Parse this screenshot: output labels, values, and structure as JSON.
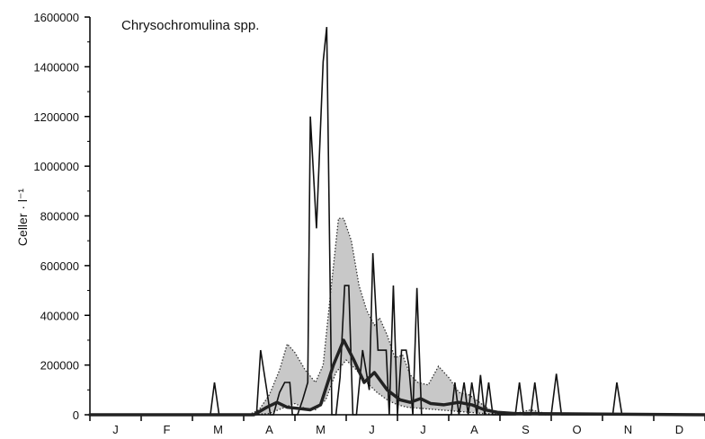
{
  "chart_data": {
    "type": "line",
    "title": "Chrysochromulina spp.",
    "ylabel": "Celler · l⁻¹",
    "xlabel": "",
    "ylim": [
      0,
      1600000
    ],
    "xlim": [
      0,
      12
    ],
    "yticks": [
      {
        "value": 0,
        "label": "0"
      },
      {
        "value": 200000,
        "label": "200000"
      },
      {
        "value": 400000,
        "label": "400000"
      },
      {
        "value": 600000,
        "label": "600000"
      },
      {
        "value": 800000,
        "label": "800000"
      },
      {
        "value": 1000000,
        "label": "1000000"
      },
      {
        "value": 1200000,
        "label": "1200000"
      },
      {
        "value": 1400000,
        "label": "1400000"
      },
      {
        "value": 1600000,
        "label": "1600000"
      }
    ],
    "months": [
      "J",
      "F",
      "M",
      "A",
      "M",
      "J",
      "J",
      "A",
      "S",
      "O",
      "N",
      "D"
    ],
    "grid": false,
    "series": [
      {
        "role": "range-band",
        "fill": "#c8c8c8",
        "upper": [
          [
            3.1,
            0
          ],
          [
            3.3,
            20000
          ],
          [
            3.5,
            80000
          ],
          [
            3.7,
            180000
          ],
          [
            3.85,
            285000
          ],
          [
            4.0,
            250000
          ],
          [
            4.2,
            180000
          ],
          [
            4.4,
            130000
          ],
          [
            4.55,
            200000
          ],
          [
            4.7,
            500000
          ],
          [
            4.85,
            790000
          ],
          [
            4.95,
            790000
          ],
          [
            5.1,
            700000
          ],
          [
            5.25,
            520000
          ],
          [
            5.4,
            420000
          ],
          [
            5.55,
            360000
          ],
          [
            5.65,
            390000
          ],
          [
            5.8,
            320000
          ],
          [
            5.95,
            230000
          ],
          [
            6.1,
            240000
          ],
          [
            6.25,
            160000
          ],
          [
            6.4,
            130000
          ],
          [
            6.6,
            120000
          ],
          [
            6.8,
            195000
          ],
          [
            7.0,
            150000
          ],
          [
            7.2,
            90000
          ],
          [
            7.4,
            80000
          ],
          [
            7.6,
            50000
          ],
          [
            7.8,
            20000
          ],
          [
            8.0,
            10000
          ],
          [
            8.3,
            5000
          ],
          [
            8.6,
            20000
          ],
          [
            8.8,
            10000
          ],
          [
            9.0,
            0
          ]
        ],
        "lower": [
          [
            3.1,
            0
          ],
          [
            3.5,
            5000
          ],
          [
            3.8,
            30000
          ],
          [
            4.0,
            45000
          ],
          [
            4.2,
            25000
          ],
          [
            4.4,
            20000
          ],
          [
            4.6,
            60000
          ],
          [
            4.8,
            170000
          ],
          [
            5.0,
            220000
          ],
          [
            5.2,
            180000
          ],
          [
            5.4,
            130000
          ],
          [
            5.6,
            90000
          ],
          [
            5.8,
            60000
          ],
          [
            6.0,
            40000
          ],
          [
            6.2,
            30000
          ],
          [
            6.5,
            25000
          ],
          [
            6.8,
            20000
          ],
          [
            7.1,
            15000
          ],
          [
            7.4,
            10000
          ],
          [
            7.7,
            5000
          ],
          [
            8.0,
            2000
          ],
          [
            9.0,
            0
          ]
        ]
      },
      {
        "role": "mean",
        "stroke": "#222222",
        "points": [
          [
            0,
            0
          ],
          [
            3.2,
            0
          ],
          [
            3.45,
            30000
          ],
          [
            3.65,
            50000
          ],
          [
            3.85,
            30000
          ],
          [
            4.1,
            25000
          ],
          [
            4.3,
            20000
          ],
          [
            4.5,
            40000
          ],
          [
            4.75,
            200000
          ],
          [
            4.95,
            300000
          ],
          [
            5.15,
            220000
          ],
          [
            5.35,
            130000
          ],
          [
            5.55,
            170000
          ],
          [
            5.8,
            100000
          ],
          [
            6.05,
            60000
          ],
          [
            6.25,
            50000
          ],
          [
            6.45,
            65000
          ],
          [
            6.65,
            45000
          ],
          [
            6.9,
            40000
          ],
          [
            7.2,
            50000
          ],
          [
            7.45,
            40000
          ],
          [
            7.7,
            20000
          ],
          [
            7.95,
            10000
          ],
          [
            8.3,
            5000
          ],
          [
            12,
            0
          ]
        ]
      },
      {
        "role": "single-year",
        "stroke": "#111111",
        "points": [
          [
            0,
            0
          ],
          [
            2.35,
            0
          ],
          [
            2.43,
            130000
          ],
          [
            2.52,
            0
          ],
          [
            3.25,
            0
          ],
          [
            3.33,
            260000
          ],
          [
            3.45,
            100000
          ],
          [
            3.52,
            0
          ],
          [
            3.58,
            0
          ],
          [
            3.7,
            90000
          ],
          [
            3.8,
            130000
          ],
          [
            3.9,
            130000
          ],
          [
            3.95,
            0
          ],
          [
            4.05,
            0
          ],
          [
            4.15,
            60000
          ],
          [
            4.25,
            130000
          ],
          [
            4.3,
            1200000
          ],
          [
            4.42,
            750000
          ],
          [
            4.55,
            1420000
          ],
          [
            4.62,
            1560000
          ],
          [
            4.72,
            0
          ],
          [
            4.8,
            0
          ],
          [
            4.88,
            150000
          ],
          [
            4.97,
            520000
          ],
          [
            5.05,
            520000
          ],
          [
            5.13,
            0
          ],
          [
            5.2,
            0
          ],
          [
            5.32,
            260000
          ],
          [
            5.45,
            100000
          ],
          [
            5.52,
            650000
          ],
          [
            5.62,
            260000
          ],
          [
            5.72,
            260000
          ],
          [
            5.78,
            260000
          ],
          [
            5.84,
            0
          ],
          [
            5.92,
            520000
          ],
          [
            6.0,
            0
          ],
          [
            6.08,
            260000
          ],
          [
            6.17,
            260000
          ],
          [
            6.22,
            200000
          ],
          [
            6.3,
            0
          ],
          [
            6.38,
            510000
          ],
          [
            6.47,
            0
          ],
          [
            6.5,
            0
          ],
          [
            7.05,
            0
          ],
          [
            7.12,
            130000
          ],
          [
            7.2,
            0
          ],
          [
            7.3,
            130000
          ],
          [
            7.38,
            0
          ],
          [
            7.45,
            130000
          ],
          [
            7.55,
            0
          ],
          [
            7.62,
            160000
          ],
          [
            7.7,
            0
          ],
          [
            7.78,
            130000
          ],
          [
            7.86,
            0
          ],
          [
            8.3,
            0
          ],
          [
            8.38,
            130000
          ],
          [
            8.46,
            0
          ],
          [
            8.6,
            0
          ],
          [
            8.68,
            130000
          ],
          [
            8.76,
            0
          ],
          [
            9.0,
            0
          ],
          [
            9.1,
            165000
          ],
          [
            9.2,
            0
          ],
          [
            10.2,
            0
          ],
          [
            10.28,
            130000
          ],
          [
            10.38,
            0
          ],
          [
            12,
            0
          ]
        ]
      }
    ]
  }
}
